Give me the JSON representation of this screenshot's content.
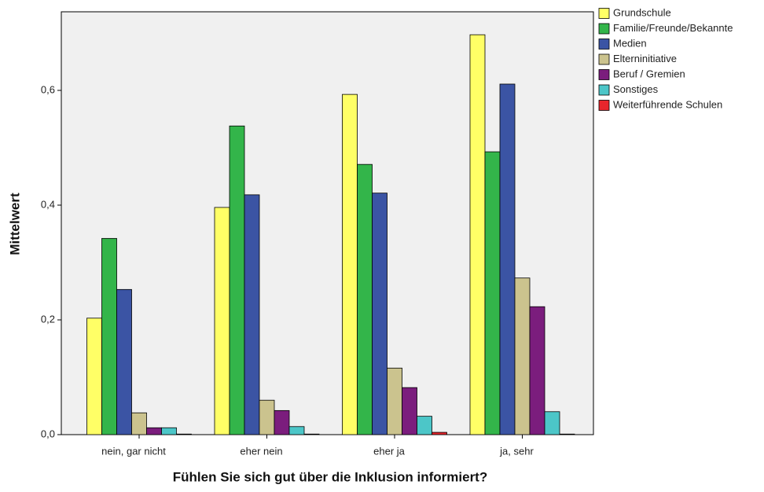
{
  "chart_data": {
    "type": "bar",
    "x_label": "Fühlen Sie sich gut über die Inklusion informiert?",
    "y_label": "Mittelwert",
    "categories": [
      "nein, gar nicht",
      "eher nein",
      "eher ja",
      "ja, sehr"
    ],
    "series": [
      {
        "name": "Grundschule",
        "color": "#ffff66",
        "values": [
          0.203,
          0.396,
          0.593,
          0.697
        ]
      },
      {
        "name": "Familie/Freunde/Bekannte",
        "color": "#33b54a",
        "values": [
          0.342,
          0.538,
          0.471,
          0.493
        ]
      },
      {
        "name": "Medien",
        "color": "#3b54a4",
        "values": [
          0.253,
          0.418,
          0.421,
          0.611
        ]
      },
      {
        "name": "Elterninitiative",
        "color": "#cbc38e",
        "values": [
          0.038,
          0.06,
          0.116,
          0.273
        ]
      },
      {
        "name": "Beruf / Gremien",
        "color": "#7b1d7d",
        "values": [
          0.012,
          0.042,
          0.082,
          0.223
        ]
      },
      {
        "name": "Sonstiges",
        "color": "#4cc6c8",
        "values": [
          0.012,
          0.014,
          0.032,
          0.04
        ]
      },
      {
        "name": "Weiterführende Schulen",
        "color": "#e8262c",
        "values": [
          0.001,
          0.001,
          0.004,
          0.001
        ]
      }
    ],
    "ylim": [
      0,
      0.737
    ],
    "yticks": [
      {
        "value": 0,
        "label": "0,0"
      },
      {
        "value": 0.2,
        "label": "0,2"
      },
      {
        "value": 0.4,
        "label": "0,4"
      },
      {
        "value": 0.6,
        "label": "0,6"
      }
    ],
    "legend": "right"
  }
}
